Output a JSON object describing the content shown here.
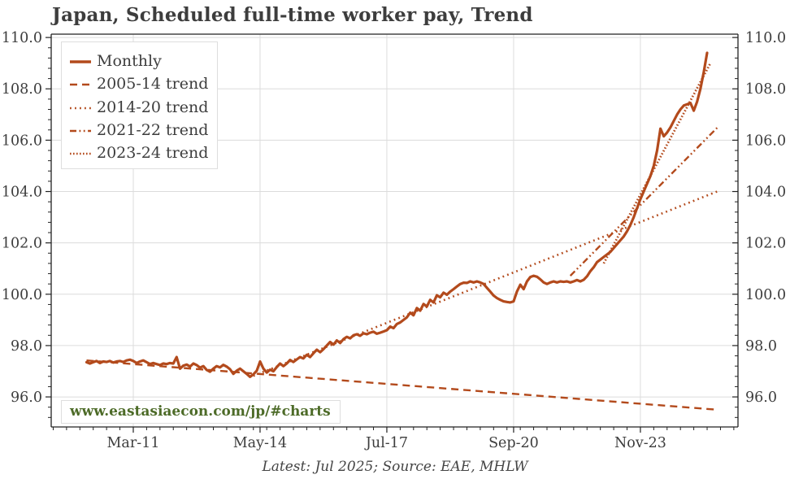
{
  "chart_data": {
    "type": "line",
    "title": "Japan, Scheduled full-time worker pay, Trend",
    "footer": "Latest: Jul 2025; Source: EAE, MHLW",
    "watermark": "www.eastasiaecon.com/jp/#charts",
    "x_unit": "months, 0 = Jan-2010",
    "xlim_months": [
      -10.6,
      195.25
    ],
    "ylim": [
      94.83,
      110.13
    ],
    "grid": true,
    "legend_position": "upper-left",
    "x_ticks": [
      {
        "t": 14,
        "label": "Mar-11"
      },
      {
        "t": 52,
        "label": "May-14"
      },
      {
        "t": 90,
        "label": "Jul-17"
      },
      {
        "t": 128,
        "label": "Sep-20"
      },
      {
        "t": 166,
        "label": "Nov-23"
      }
    ],
    "x_minor_tick_step": 4,
    "y_ticks": [
      {
        "v": 96,
        "label": "96.0"
      },
      {
        "v": 98,
        "label": "98.0"
      },
      {
        "v": 100,
        "label": "100.0"
      },
      {
        "v": 102,
        "label": "102.0"
      },
      {
        "v": 104,
        "label": "104.0"
      },
      {
        "v": 106,
        "label": "106.0"
      },
      {
        "v": 108,
        "label": "108.0"
      },
      {
        "v": 110,
        "label": "110.0"
      }
    ],
    "y_minor_tick_step": 0.4,
    "colors": {
      "line": "#b34a1c",
      "grid": "#dcdcdc",
      "axis": "#222222",
      "text": "#3d3d3d",
      "watermark_green": "#4d6b28"
    },
    "series": [
      {
        "name": "Monthly",
        "style": "solid",
        "start_month": 0,
        "values": [
          97.35,
          97.3,
          97.35,
          97.4,
          97.32,
          97.38,
          97.36,
          97.4,
          97.34,
          97.38,
          97.4,
          97.36,
          97.42,
          97.45,
          97.4,
          97.32,
          97.38,
          97.42,
          97.35,
          97.28,
          97.32,
          97.28,
          97.24,
          97.3,
          97.28,
          97.32,
          97.3,
          97.55,
          97.1,
          97.22,
          97.26,
          97.18,
          97.3,
          97.24,
          97.14,
          97.2,
          97.05,
          96.98,
          97.1,
          97.2,
          97.15,
          97.25,
          97.18,
          97.08,
          96.9,
          97.02,
          97.1,
          97.0,
          96.9,
          96.78,
          96.88,
          97.02,
          97.38,
          97.1,
          96.95,
          97.06,
          97.0,
          97.16,
          97.3,
          97.2,
          97.3,
          97.44,
          97.36,
          97.46,
          97.55,
          97.5,
          97.64,
          97.55,
          97.7,
          97.84,
          97.74,
          97.86,
          98.0,
          98.14,
          98.04,
          98.2,
          98.1,
          98.25,
          98.34,
          98.28,
          98.4,
          98.44,
          98.38,
          98.48,
          98.44,
          98.5,
          98.54,
          98.46,
          98.5,
          98.55,
          98.6,
          98.74,
          98.68,
          98.84,
          98.9,
          99.0,
          99.1,
          99.28,
          99.18,
          99.46,
          99.36,
          99.62,
          99.52,
          99.78,
          99.68,
          99.96,
          99.88,
          100.06,
          99.98,
          100.1,
          100.2,
          100.3,
          100.4,
          100.45,
          100.44,
          100.5,
          100.46,
          100.5,
          100.46,
          100.4,
          100.25,
          100.1,
          99.95,
          99.85,
          99.78,
          99.72,
          99.7,
          99.68,
          99.72,
          100.1,
          100.37,
          100.2,
          100.5,
          100.67,
          100.72,
          100.68,
          100.58,
          100.46,
          100.4,
          100.46,
          100.5,
          100.46,
          100.5,
          100.48,
          100.5,
          100.46,
          100.5,
          100.55,
          100.5,
          100.56,
          100.7,
          100.9,
          101.05,
          101.25,
          101.35,
          101.45,
          101.55,
          101.65,
          101.8,
          101.95,
          102.1,
          102.25,
          102.45,
          102.7,
          103.0,
          103.35,
          103.7,
          104.0,
          104.3,
          104.6,
          105.0,
          105.6,
          106.45,
          106.15,
          106.3,
          106.5,
          106.75,
          107.0,
          107.2,
          107.35,
          107.4,
          107.45,
          107.15,
          107.5,
          108.0,
          108.65,
          109.4
        ]
      },
      {
        "name": "2005-14 trend",
        "style": "dashed",
        "points": [
          [
            0,
            97.42
          ],
          [
            189,
            95.5
          ]
        ]
      },
      {
        "name": "2014-20 trend",
        "style": "dotted",
        "points": [
          [
            50,
            96.82
          ],
          [
            189,
            104.0
          ]
        ]
      },
      {
        "name": "2021-22 trend",
        "style": "dashdot",
        "points": [
          [
            145,
            100.72
          ],
          [
            189,
            106.48
          ]
        ]
      },
      {
        "name": "2023-24 trend",
        "style": "densedot",
        "points": [
          [
            155,
            101.2
          ],
          [
            187,
            109.0
          ]
        ]
      }
    ]
  }
}
